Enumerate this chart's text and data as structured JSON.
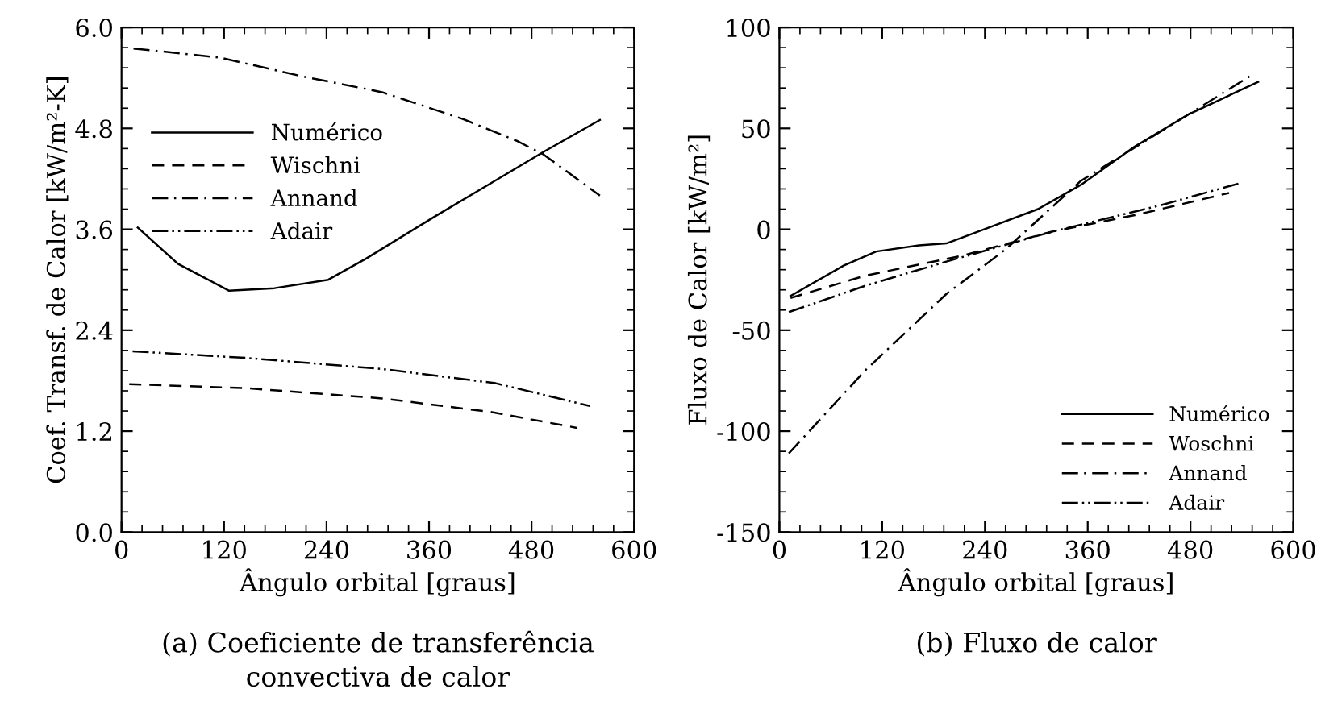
{
  "chart_data": [
    {
      "type": "line",
      "xlabel": "Ângulo orbital [graus]",
      "ylabel": "Coef. Transf. de Calor [kW/m²-K]",
      "annotations": [
        "(a) Coeficiente de transferência\nconvectiva de calor"
      ],
      "xlim": [
        0,
        600
      ],
      "xticks": [
        0,
        120,
        240,
        360,
        480,
        600
      ],
      "ylim": [
        0,
        6.0
      ],
      "yticks": [
        {
          "value": 0,
          "label": "0.0"
        },
        {
          "value": 1.2,
          "label": "1.2"
        },
        {
          "value": 2.4,
          "label": "2.4"
        },
        {
          "value": 3.6,
          "label": "3.6"
        },
        {
          "value": 4.8,
          "label": "4.8"
        },
        {
          "value": 6.0,
          "label": "6.0"
        }
      ],
      "grid": false,
      "legend": "top left",
      "series": [
        {
          "name": "Numérico",
          "color": "#000000",
          "line_style": "solid",
          "x": [
            19,
            66,
            126,
            179,
            242,
            286,
            368,
            431,
            494,
            560
          ],
          "values": [
            3.62,
            3.19,
            2.87,
            2.9,
            3.0,
            3.25,
            3.76,
            4.14,
            4.52,
            4.9
          ]
        },
        {
          "name": "Wischni",
          "color": "#000000",
          "line_style": "dashed",
          "x": [
            9,
            148,
            305,
            431,
            533
          ],
          "values": [
            1.76,
            1.71,
            1.59,
            1.43,
            1.24
          ]
        },
        {
          "name": "Annand",
          "color": "#000000",
          "line_style": "dashdot",
          "x": [
            14,
            116,
            211,
            305,
            400,
            463,
            494,
            560
          ],
          "values": [
            5.75,
            5.64,
            5.42,
            5.23,
            4.91,
            4.65,
            4.49,
            4.0
          ]
        },
        {
          "name": "Adair",
          "color": "#000000",
          "line_style": "dashdotdot",
          "x": [
            13,
            148,
            305,
            438,
            548
          ],
          "values": [
            2.15,
            2.07,
            1.94,
            1.77,
            1.5
          ]
        }
      ]
    },
    {
      "type": "line",
      "xlabel": "Ângulo orbital [graus]",
      "ylabel": "Fluxo de Calor [kW/m²]",
      "annotations": [
        "(b) Fluxo de calor"
      ],
      "xlim": [
        0,
        600
      ],
      "xticks": [
        0,
        120,
        240,
        360,
        480,
        600
      ],
      "ylim": [
        -150,
        100
      ],
      "yticks": [
        -150,
        -100,
        -50,
        0,
        50,
        100
      ],
      "grid": false,
      "legend": "bottom right",
      "series": [
        {
          "name": "Numérico",
          "color": "#000000",
          "line_style": "solid",
          "x": [
            13,
            75,
            113,
            163,
            195,
            239,
            302,
            352,
            415,
            478,
            559
          ],
          "values": [
            -33,
            -18,
            -11,
            -8,
            -7,
            0,
            10,
            22,
            41,
            57,
            73
          ]
        },
        {
          "name": "Woschni",
          "color": "#000000",
          "line_style": "dashed",
          "x": [
            13,
            100,
            214,
            320,
            415,
            525
          ],
          "values": [
            -34,
            -23,
            -13,
            -1,
            7,
            18
          ]
        },
        {
          "name": "Annand",
          "color": "#000000",
          "line_style": "dashdot",
          "x": [
            11,
            100,
            195,
            264,
            352,
            478,
            550
          ],
          "values": [
            -111,
            -70,
            -32,
            -10,
            24,
            57,
            76
          ]
        },
        {
          "name": "Adair",
          "color": "#000000",
          "line_style": "dashdotdot",
          "x": [
            11,
            100,
            195,
            320,
            446,
            539
          ],
          "values": [
            -41,
            -28,
            -16,
            -1,
            12,
            23
          ]
        }
      ]
    }
  ]
}
